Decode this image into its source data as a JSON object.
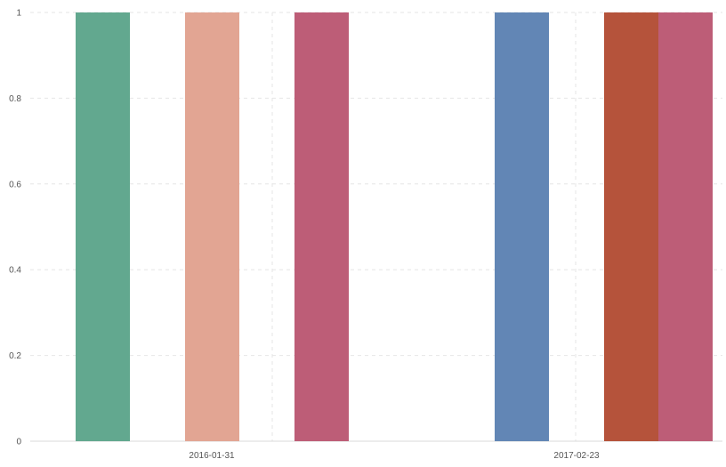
{
  "chart_data": {
    "type": "bar",
    "title": "",
    "xlabel": "",
    "ylabel": "",
    "ylim": [
      0,
      1
    ],
    "y_ticks": [
      0,
      0.2,
      0.4,
      0.6,
      0.8,
      1
    ],
    "y_tick_labels": [
      "0",
      "0.2",
      "0.4",
      "0.6",
      "0.8",
      "1"
    ],
    "grid": true,
    "legend": "none",
    "categories": [
      "2016-01-31",
      "2017-02-23"
    ],
    "bars": [
      {
        "category": "2016-01-31",
        "value": 1,
        "color": "#62a88f"
      },
      {
        "category": "2016-01-31",
        "value": 1,
        "color": "#e2a593"
      },
      {
        "category": "2016-01-31",
        "value": 1,
        "color": "#bd5d77"
      },
      {
        "category": "2017-02-23",
        "value": 1,
        "color": "#6286b5"
      },
      {
        "category": "2017-02-23",
        "value": 1,
        "color": "#b5533b"
      },
      {
        "category": "2017-02-23",
        "value": 1,
        "color": "#bd5d77"
      }
    ]
  }
}
